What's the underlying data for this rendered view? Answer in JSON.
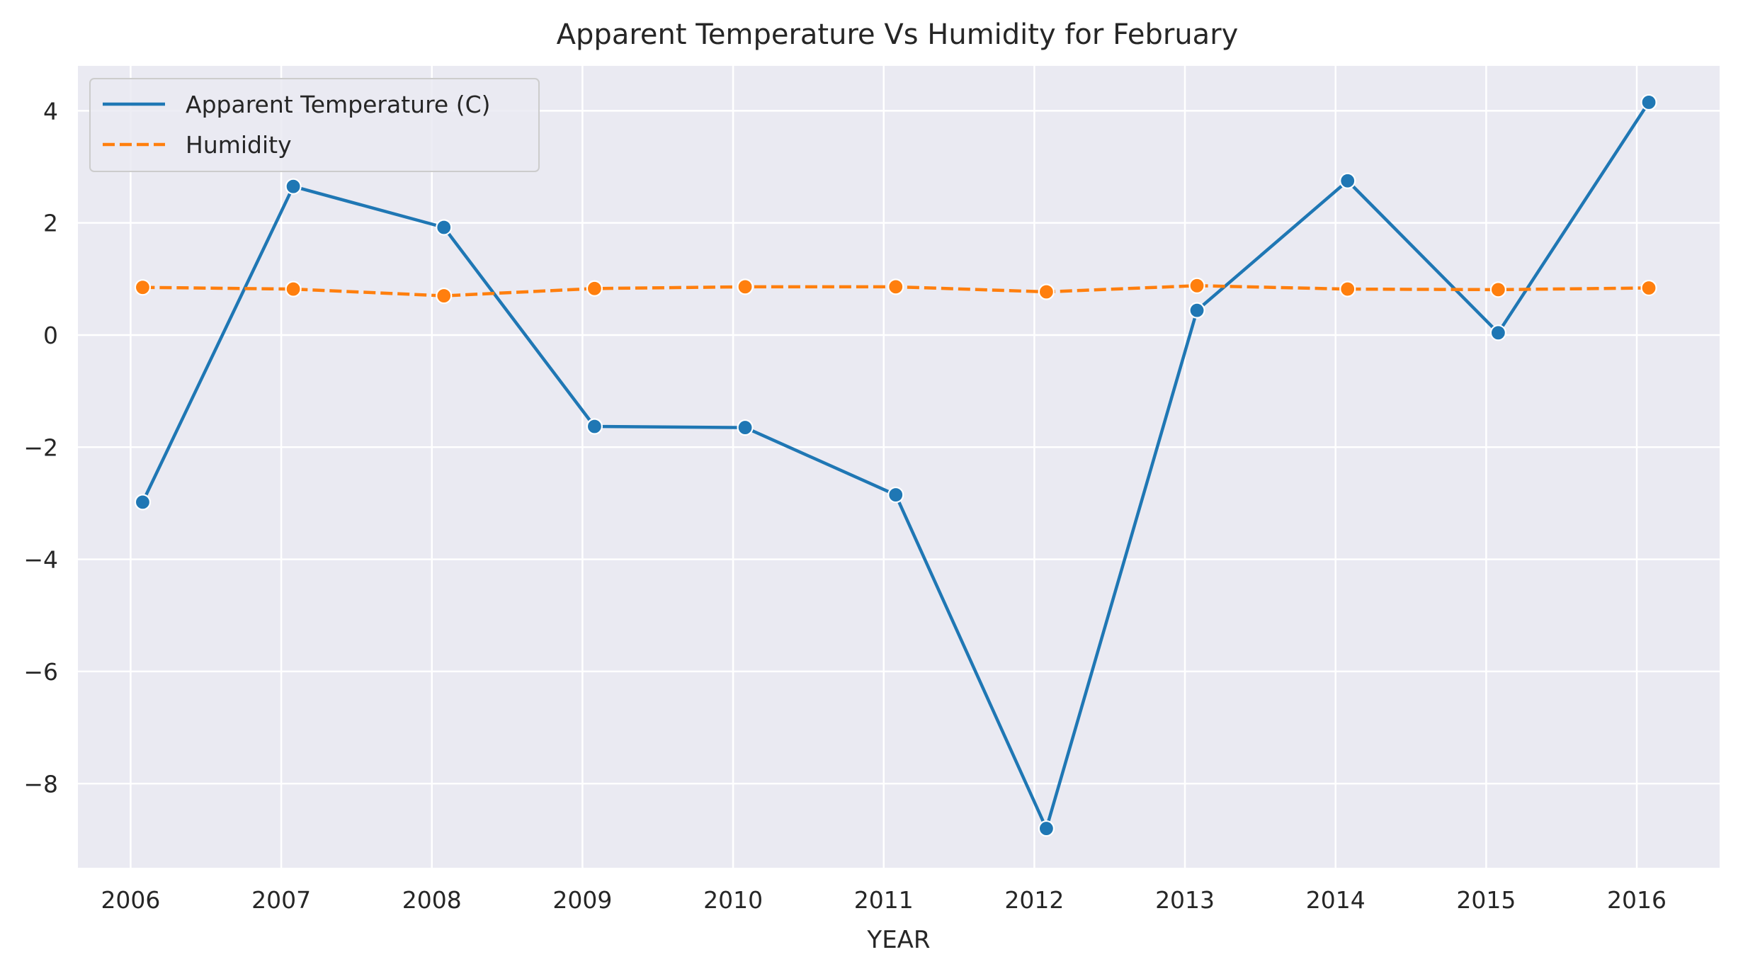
{
  "chart_data": {
    "type": "line",
    "title": "Apparent Temperature Vs Humidity for February",
    "xlabel": "YEAR",
    "ylabel": "",
    "x_ticks": [
      "2006",
      "2007",
      "2008",
      "2009",
      "2010",
      "2011",
      "2012",
      "2013",
      "2014",
      "2015",
      "2016"
    ],
    "y_ticks": [
      -8,
      -6,
      -4,
      -2,
      0,
      2,
      4
    ],
    "y_tick_labels": [
      "−8",
      "−6",
      "−4",
      "−2",
      "0",
      "2",
      "4"
    ],
    "xlim": [
      2005.65,
      2016.55
    ],
    "ylim": [
      -9.5,
      4.8
    ],
    "grid": true,
    "legend_position": "top-left",
    "series": [
      {
        "name": "Apparent Temperature (C)",
        "color": "#1f77b4",
        "style": "solid",
        "marker": "circle",
        "x": [
          2006.08,
          2007.08,
          2008.08,
          2009.08,
          2010.08,
          2011.08,
          2012.08,
          2013.08,
          2014.08,
          2015.08,
          2016.08
        ],
        "values": [
          -2.98,
          2.65,
          1.92,
          -1.63,
          -1.65,
          -2.85,
          -8.8,
          0.44,
          2.75,
          0.04,
          4.15
        ]
      },
      {
        "name": "Humidity",
        "color": "#ff7f0e",
        "style": "dashed",
        "marker": "circle",
        "x": [
          2006.08,
          2007.08,
          2008.08,
          2009.08,
          2010.08,
          2011.08,
          2012.08,
          2013.08,
          2014.08,
          2015.08,
          2016.08
        ],
        "values": [
          0.85,
          0.82,
          0.7,
          0.83,
          0.86,
          0.86,
          0.77,
          0.88,
          0.82,
          0.81,
          0.84
        ]
      }
    ]
  }
}
